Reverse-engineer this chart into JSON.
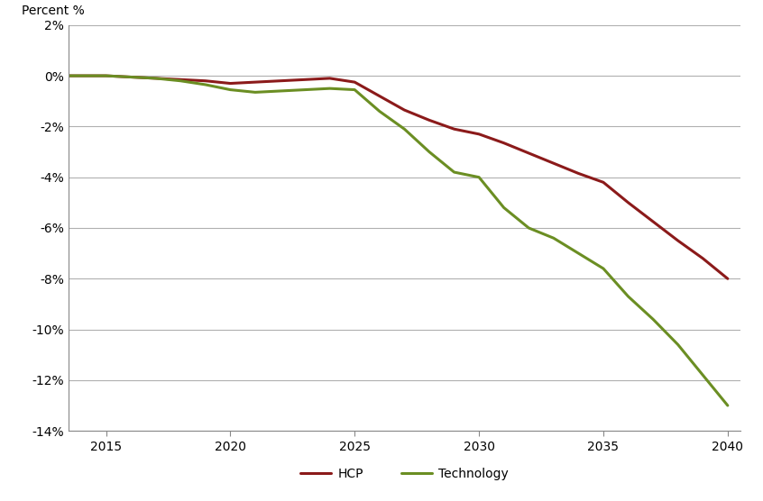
{
  "ylabel": "Percent %",
  "ylim": [
    -14,
    2
  ],
  "yticks": [
    2,
    0,
    -2,
    -4,
    -6,
    -8,
    -10,
    -12,
    -14
  ],
  "ytick_labels": [
    "2%",
    "0%",
    "-2%",
    "-4%",
    "-6%",
    "-8%",
    "-10%",
    "-12%",
    "-14%"
  ],
  "xlim": [
    2013.5,
    2040.5
  ],
  "xticks": [
    2015,
    2020,
    2025,
    2030,
    2035,
    2040
  ],
  "hcp_color": "#8B1A1A",
  "tech_color": "#6B8E23",
  "background_color": "#ffffff",
  "grid_color": "#b0b0b0",
  "hcp_x": [
    2013,
    2014,
    2015,
    2016,
    2017,
    2018,
    2019,
    2020,
    2021,
    2022,
    2023,
    2024,
    2025,
    2026,
    2027,
    2028,
    2029,
    2030,
    2031,
    2032,
    2033,
    2034,
    2035,
    2036,
    2037,
    2038,
    2039,
    2040
  ],
  "hcp_y": [
    0.0,
    0.0,
    0.0,
    -0.05,
    -0.1,
    -0.15,
    -0.2,
    -0.3,
    -0.25,
    -0.2,
    -0.15,
    -0.1,
    -0.25,
    -0.8,
    -1.35,
    -1.75,
    -2.1,
    -2.3,
    -2.65,
    -3.05,
    -3.45,
    -3.85,
    -4.2,
    -5.0,
    -5.75,
    -6.5,
    -7.2,
    -8.0
  ],
  "tech_x": [
    2013,
    2014,
    2015,
    2016,
    2017,
    2018,
    2019,
    2020,
    2021,
    2022,
    2023,
    2024,
    2025,
    2026,
    2027,
    2028,
    2029,
    2030,
    2031,
    2032,
    2033,
    2034,
    2035,
    2036,
    2037,
    2038,
    2039,
    2040
  ],
  "tech_y": [
    0.0,
    0.0,
    0.0,
    -0.05,
    -0.1,
    -0.2,
    -0.35,
    -0.55,
    -0.65,
    -0.6,
    -0.55,
    -0.5,
    -0.55,
    -1.4,
    -2.1,
    -3.0,
    -3.8,
    -4.0,
    -5.2,
    -6.0,
    -6.4,
    -7.0,
    -7.6,
    -8.7,
    -9.6,
    -10.6,
    -11.8,
    -13.0
  ],
  "legend_labels": [
    "HCP",
    "Technology"
  ],
  "line_width": 2.2
}
